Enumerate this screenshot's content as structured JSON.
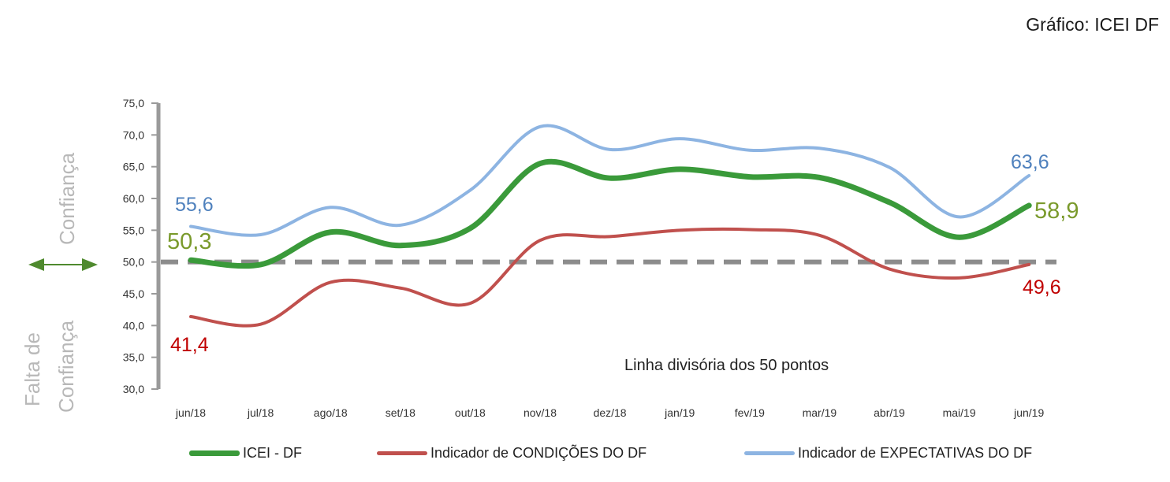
{
  "title": "Gráfico: ICEI DF",
  "chart_data": {
    "type": "line",
    "categories": [
      "jun/18",
      "jul/18",
      "ago/18",
      "set/18",
      "out/18",
      "nov/18",
      "dez/18",
      "jan/19",
      "fev/19",
      "mar/19",
      "abr/19",
      "mai/19",
      "jun/19"
    ],
    "series": [
      {
        "name": "ICEI  - DF",
        "color": "#3a9a3a",
        "values": [
          50.3,
          49.6,
          54.7,
          52.6,
          55.3,
          65.5,
          63.2,
          64.6,
          63.4,
          63.3,
          59.4,
          53.9,
          58.9
        ],
        "labels": [
          {
            "index": 0,
            "text": "50,3"
          },
          {
            "index": 12,
            "text": "58,9"
          }
        ],
        "label_color": "#7a9a2c"
      },
      {
        "name": "Indicador de CONDIÇÕES DO DF",
        "color": "#c0504d",
        "values": [
          41.4,
          40.2,
          46.8,
          45.9,
          43.5,
          53.4,
          54.0,
          55.0,
          55.1,
          54.2,
          48.9,
          47.5,
          49.6
        ],
        "labels": [
          {
            "index": 0,
            "text": "41,4"
          },
          {
            "index": 12,
            "text": "49,6"
          }
        ],
        "label_color": "#c00000"
      },
      {
        "name": "Indicador de EXPECTATIVAS  DO DF",
        "color": "#8db4e2",
        "values": [
          55.6,
          54.3,
          58.6,
          55.8,
          61.3,
          71.3,
          67.7,
          69.4,
          67.6,
          67.9,
          64.9,
          57.1,
          63.6
        ],
        "labels": [
          {
            "index": 0,
            "text": "55,6"
          },
          {
            "index": 12,
            "text": "63,6"
          }
        ],
        "label_color": "#4f81bd"
      }
    ],
    "ylim": [
      30,
      75
    ],
    "yticks": [
      "30,0",
      "35,0",
      "40,0",
      "45,0",
      "50,0",
      "55,0",
      "60,0",
      "65,0",
      "70,0",
      "75,0"
    ],
    "reference_line": {
      "value": 50,
      "text": "Linha divisória dos 50 pontos"
    },
    "side_labels": {
      "upper": "Confiança",
      "lower_line1": "Falta de",
      "lower_line2": "Confiança"
    },
    "legend_position": "bottom",
    "grid": false
  }
}
